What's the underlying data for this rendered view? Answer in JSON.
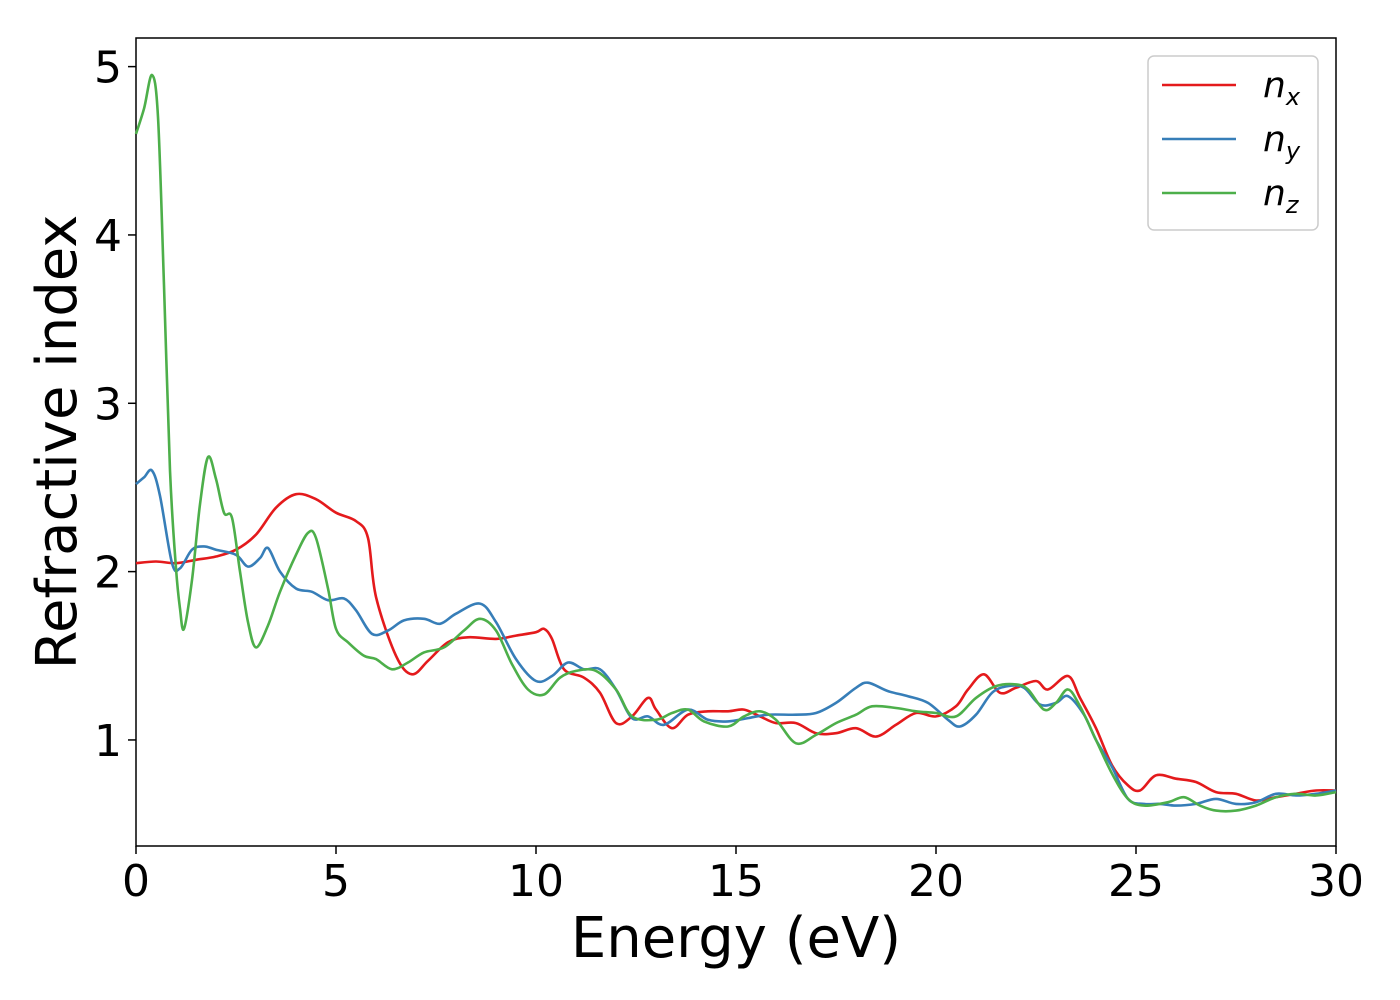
{
  "chart_data": {
    "type": "line",
    "title": "",
    "xlabel": "Energy (eV)",
    "ylabel": "Refractive index",
    "xlim": [
      0,
      30
    ],
    "ylim": [
      0.37,
      5.17
    ],
    "xticks": [
      0,
      5,
      10,
      15,
      20,
      25,
      30
    ],
    "yticks": [
      1,
      2,
      3,
      4,
      5
    ],
    "grid": false,
    "legend_position": "top-right",
    "series": [
      {
        "name": "n",
        "subscript": "x",
        "color": "#e41a1c",
        "points": [
          [
            0,
            2.05
          ],
          [
            0.5,
            2.06
          ],
          [
            1,
            2.05
          ],
          [
            1.5,
            2.07
          ],
          [
            2,
            2.09
          ],
          [
            2.5,
            2.13
          ],
          [
            3,
            2.22
          ],
          [
            3.5,
            2.38
          ],
          [
            4,
            2.46
          ],
          [
            4.5,
            2.43
          ],
          [
            5,
            2.35
          ],
          [
            5.5,
            2.3
          ],
          [
            5.8,
            2.2
          ],
          [
            6,
            1.85
          ],
          [
            6.5,
            1.5
          ],
          [
            6.9,
            1.39
          ],
          [
            7.3,
            1.47
          ],
          [
            7.8,
            1.58
          ],
          [
            8.3,
            1.61
          ],
          [
            9,
            1.6
          ],
          [
            9.5,
            1.62
          ],
          [
            10,
            1.64
          ],
          [
            10.2,
            1.66
          ],
          [
            10.4,
            1.6
          ],
          [
            10.7,
            1.42
          ],
          [
            11.2,
            1.37
          ],
          [
            11.6,
            1.28
          ],
          [
            12,
            1.1
          ],
          [
            12.4,
            1.14
          ],
          [
            12.8,
            1.25
          ],
          [
            13,
            1.18
          ],
          [
            13.4,
            1.07
          ],
          [
            13.8,
            1.15
          ],
          [
            14.3,
            1.17
          ],
          [
            14.8,
            1.17
          ],
          [
            15.2,
            1.18
          ],
          [
            15.6,
            1.14
          ],
          [
            16,
            1.1
          ],
          [
            16.5,
            1.1
          ],
          [
            17,
            1.04
          ],
          [
            17.5,
            1.04
          ],
          [
            18,
            1.07
          ],
          [
            18.5,
            1.02
          ],
          [
            19,
            1.09
          ],
          [
            19.5,
            1.16
          ],
          [
            20,
            1.14
          ],
          [
            20.5,
            1.2
          ],
          [
            20.8,
            1.3
          ],
          [
            21.2,
            1.39
          ],
          [
            21.6,
            1.28
          ],
          [
            22,
            1.31
          ],
          [
            22.5,
            1.35
          ],
          [
            22.8,
            1.3
          ],
          [
            23.3,
            1.38
          ],
          [
            23.6,
            1.25
          ],
          [
            24,
            1.07
          ],
          [
            24.4,
            0.85
          ],
          [
            24.8,
            0.73
          ],
          [
            25.1,
            0.7
          ],
          [
            25.5,
            0.79
          ],
          [
            26,
            0.77
          ],
          [
            26.5,
            0.75
          ],
          [
            27,
            0.69
          ],
          [
            27.5,
            0.68
          ],
          [
            28,
            0.64
          ],
          [
            28.5,
            0.66
          ],
          [
            29,
            0.68
          ],
          [
            29.5,
            0.7
          ],
          [
            30,
            0.7
          ]
        ]
      },
      {
        "name": "n",
        "subscript": "y",
        "color": "#377eb8",
        "points": [
          [
            0,
            2.52
          ],
          [
            0.2,
            2.56
          ],
          [
            0.4,
            2.6
          ],
          [
            0.6,
            2.45
          ],
          [
            0.9,
            2.05
          ],
          [
            1.1,
            2.02
          ],
          [
            1.4,
            2.13
          ],
          [
            1.7,
            2.15
          ],
          [
            2,
            2.13
          ],
          [
            2.5,
            2.1
          ],
          [
            2.8,
            2.03
          ],
          [
            3.1,
            2.08
          ],
          [
            3.3,
            2.14
          ],
          [
            3.6,
            2.0
          ],
          [
            4,
            1.9
          ],
          [
            4.4,
            1.88
          ],
          [
            4.8,
            1.83
          ],
          [
            5.2,
            1.84
          ],
          [
            5.5,
            1.77
          ],
          [
            5.9,
            1.63
          ],
          [
            6.3,
            1.65
          ],
          [
            6.7,
            1.71
          ],
          [
            7.2,
            1.72
          ],
          [
            7.6,
            1.69
          ],
          [
            8,
            1.75
          ],
          [
            8.6,
            1.81
          ],
          [
            9,
            1.7
          ],
          [
            9.5,
            1.48
          ],
          [
            10,
            1.35
          ],
          [
            10.4,
            1.38
          ],
          [
            10.8,
            1.46
          ],
          [
            11.2,
            1.42
          ],
          [
            11.6,
            1.42
          ],
          [
            12,
            1.3
          ],
          [
            12.4,
            1.13
          ],
          [
            12.8,
            1.14
          ],
          [
            13.2,
            1.09
          ],
          [
            13.8,
            1.18
          ],
          [
            14.3,
            1.12
          ],
          [
            14.8,
            1.11
          ],
          [
            15.3,
            1.13
          ],
          [
            15.8,
            1.15
          ],
          [
            16.5,
            1.15
          ],
          [
            17,
            1.16
          ],
          [
            17.5,
            1.22
          ],
          [
            18,
            1.31
          ],
          [
            18.3,
            1.34
          ],
          [
            18.8,
            1.29
          ],
          [
            19.3,
            1.26
          ],
          [
            19.8,
            1.22
          ],
          [
            20.3,
            1.12
          ],
          [
            20.6,
            1.08
          ],
          [
            21,
            1.15
          ],
          [
            21.4,
            1.28
          ],
          [
            21.8,
            1.32
          ],
          [
            22.2,
            1.31
          ],
          [
            22.6,
            1.21
          ],
          [
            23,
            1.22
          ],
          [
            23.3,
            1.26
          ],
          [
            23.7,
            1.15
          ],
          [
            24,
            1.0
          ],
          [
            24.4,
            0.84
          ],
          [
            24.8,
            0.65
          ],
          [
            25.2,
            0.62
          ],
          [
            25.6,
            0.62
          ],
          [
            26,
            0.61
          ],
          [
            26.5,
            0.62
          ],
          [
            27,
            0.65
          ],
          [
            27.5,
            0.62
          ],
          [
            28,
            0.63
          ],
          [
            28.5,
            0.68
          ],
          [
            29,
            0.67
          ],
          [
            29.5,
            0.68
          ],
          [
            30,
            0.7
          ]
        ]
      },
      {
        "name": "n",
        "subscript": "z",
        "color": "#4daf4a",
        "points": [
          [
            0,
            4.6
          ],
          [
            0.2,
            4.75
          ],
          [
            0.4,
            4.95
          ],
          [
            0.55,
            4.7
          ],
          [
            0.7,
            3.7
          ],
          [
            0.85,
            2.6
          ],
          [
            1,
            2.02
          ],
          [
            1.1,
            1.78
          ],
          [
            1.2,
            1.66
          ],
          [
            1.4,
            1.95
          ],
          [
            1.6,
            2.4
          ],
          [
            1.8,
            2.68
          ],
          [
            2,
            2.55
          ],
          [
            2.2,
            2.35
          ],
          [
            2.4,
            2.32
          ],
          [
            2.6,
            2.0
          ],
          [
            2.8,
            1.7
          ],
          [
            3,
            1.55
          ],
          [
            3.3,
            1.68
          ],
          [
            3.6,
            1.88
          ],
          [
            4,
            2.1
          ],
          [
            4.3,
            2.23
          ],
          [
            4.5,
            2.2
          ],
          [
            4.8,
            1.9
          ],
          [
            5,
            1.66
          ],
          [
            5.3,
            1.58
          ],
          [
            5.7,
            1.5
          ],
          [
            6,
            1.48
          ],
          [
            6.4,
            1.42
          ],
          [
            6.8,
            1.46
          ],
          [
            7.2,
            1.52
          ],
          [
            7.7,
            1.55
          ],
          [
            8.2,
            1.65
          ],
          [
            8.6,
            1.72
          ],
          [
            9,
            1.65
          ],
          [
            9.4,
            1.45
          ],
          [
            9.8,
            1.3
          ],
          [
            10.2,
            1.27
          ],
          [
            10.6,
            1.37
          ],
          [
            11,
            1.41
          ],
          [
            11.5,
            1.41
          ],
          [
            12,
            1.3
          ],
          [
            12.4,
            1.14
          ],
          [
            13,
            1.12
          ],
          [
            13.4,
            1.16
          ],
          [
            13.8,
            1.18
          ],
          [
            14.2,
            1.11
          ],
          [
            14.8,
            1.08
          ],
          [
            15.2,
            1.14
          ],
          [
            15.6,
            1.17
          ],
          [
            16,
            1.12
          ],
          [
            16.5,
            0.98
          ],
          [
            17,
            1.03
          ],
          [
            17.5,
            1.1
          ],
          [
            18,
            1.15
          ],
          [
            18.4,
            1.2
          ],
          [
            19,
            1.19
          ],
          [
            19.5,
            1.17
          ],
          [
            20,
            1.16
          ],
          [
            20.5,
            1.14
          ],
          [
            21,
            1.25
          ],
          [
            21.5,
            1.32
          ],
          [
            22,
            1.33
          ],
          [
            22.3,
            1.3
          ],
          [
            22.7,
            1.18
          ],
          [
            23,
            1.22
          ],
          [
            23.3,
            1.3
          ],
          [
            23.6,
            1.2
          ],
          [
            24,
            1.0
          ],
          [
            24.4,
            0.8
          ],
          [
            24.8,
            0.65
          ],
          [
            25.2,
            0.61
          ],
          [
            25.8,
            0.63
          ],
          [
            26.2,
            0.66
          ],
          [
            26.6,
            0.61
          ],
          [
            27,
            0.58
          ],
          [
            27.5,
            0.58
          ],
          [
            28,
            0.61
          ],
          [
            28.5,
            0.66
          ],
          [
            29,
            0.68
          ],
          [
            29.5,
            0.67
          ],
          [
            30,
            0.69
          ]
        ]
      }
    ]
  }
}
